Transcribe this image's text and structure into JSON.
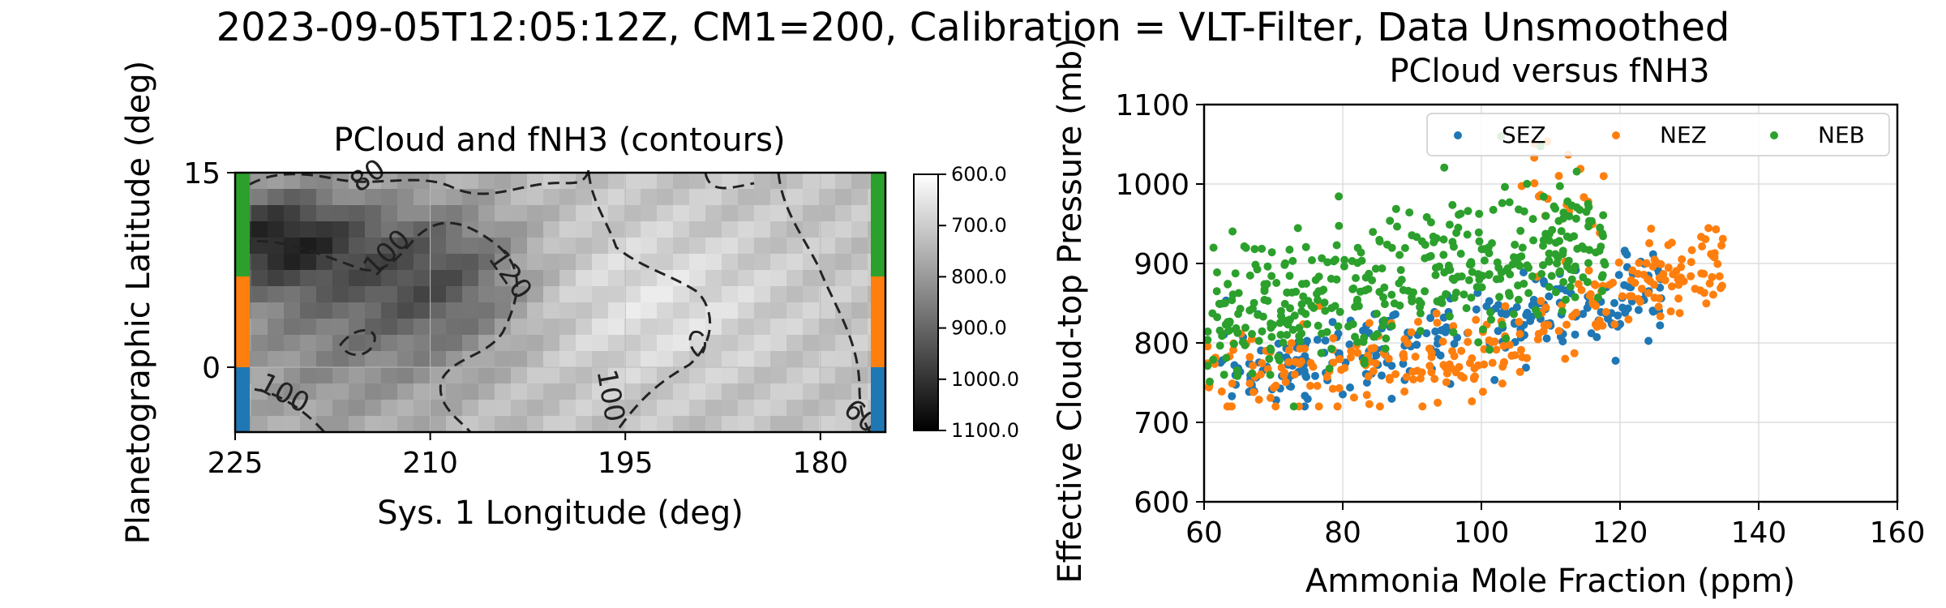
{
  "figure": {
    "suptitle": "2023-09-05T12:05:12Z, CM1=200, Calibration = VLT-Filter, Data Unsmoothed"
  },
  "chart_data": [
    {
      "type": "heatmap",
      "title": "PCloud and fNH3 (contours)",
      "xlabel": "Sys. 1 Longitude (deg)",
      "ylabel": "Planetographic Latitude (deg)",
      "xlim": [
        225,
        175
      ],
      "ylim": [
        -5,
        15
      ],
      "xticks": [
        225,
        210,
        195,
        180
      ],
      "yticks": [
        15,
        0
      ],
      "colorbar": {
        "ticks": [
          "600.0",
          "700.0",
          "800.0",
          "900.0",
          "1000.0",
          "1100.0"
        ],
        "range": [
          600,
          1100
        ],
        "colormap": "gray_r"
      },
      "contour_labels": [
        "80",
        "100",
        "120",
        "100",
        "100",
        "60"
      ],
      "zone_bars": [
        {
          "name": "SEZ",
          "lat_range": [
            -5,
            0
          ],
          "color": "#1f77b4"
        },
        {
          "name": "NEZ",
          "lat_range": [
            0,
            7
          ],
          "color": "#ff7f0e"
        },
        {
          "name": "NEB",
          "lat_range": [
            7,
            15
          ],
          "color": "#2ca02c"
        }
      ],
      "grid": true
    },
    {
      "type": "scatter",
      "title": "PCloud versus fNH3",
      "xlabel": "Ammonia Mole Fraction (ppm)",
      "ylabel": "Effective Cloud-top Pressure (mb)",
      "xlim": [
        60,
        160
      ],
      "ylim": [
        1100,
        600
      ],
      "xticks": [
        60,
        80,
        100,
        120,
        140,
        160
      ],
      "yticks": [
        600,
        700,
        800,
        900,
        1000,
        1100
      ],
      "grid": true,
      "legend_position": "upper-right",
      "series": [
        {
          "name": "SEZ",
          "color": "#1f77b4",
          "x_range": [
            62,
            126
          ],
          "y_center": 830,
          "y_spread": 60,
          "approx_points": 260
        },
        {
          "name": "NEZ",
          "color": "#ff7f0e",
          "x_range": [
            60,
            135
          ],
          "y_center": 840,
          "y_spread": 80,
          "approx_points": 300
        },
        {
          "name": "NEB",
          "color": "#2ca02c",
          "x_range": [
            60,
            118
          ],
          "y_center": 900,
          "y_spread": 70,
          "approx_points": 420
        }
      ]
    }
  ]
}
